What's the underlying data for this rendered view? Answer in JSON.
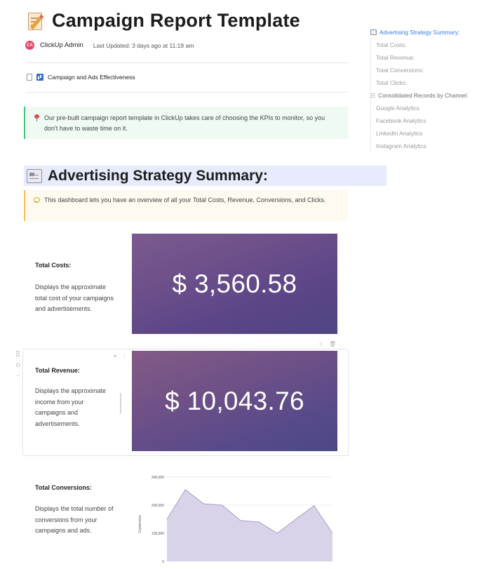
{
  "doc": {
    "title": "Campaign Report Template",
    "author": {
      "initials": "CA",
      "name": "ClickUp Admin"
    },
    "last_updated": "Last Updated: 3 days ago at 11:19 am",
    "subpage_link": "Campaign and Ads Effectiveness",
    "intro_callout": "Our pre-built campaign report template in ClickUp takes care of choosing the KPIs to monitor, so you don't have to waste time on it."
  },
  "section": {
    "title": "Advertising Strategy Summary:",
    "callout": "This dashboard lets you have an overview of all your Total Costs, Revenue, Conversions, and Clicks."
  },
  "metrics": {
    "costs": {
      "label": "Total Costs:",
      "description": "Displays the approximate total cost of your campaigns and advertisements.",
      "value": "$ 3,560.58"
    },
    "revenue": {
      "label": "Total Revenue:",
      "description": "Displays the approximate income from your campaigns and advertisements.",
      "value": "$ 10,043.76"
    },
    "conversions": {
      "label": "Total Conversions:",
      "description": "Displays the total number of conversions from your campaigns and ads."
    }
  },
  "chart_data": {
    "type": "area",
    "title": "",
    "xlabel": "",
    "ylabel": "Conversion",
    "y_ticks": [
      "0",
      "100,000",
      "200,000",
      "300,000"
    ],
    "ylim": [
      0,
      300000
    ],
    "values": [
      150000,
      255000,
      205000,
      200000,
      145000,
      140000,
      100000,
      150000,
      198000,
      100000
    ],
    "fill_color": "#d9d3ea",
    "line_color": "#a99cc9"
  },
  "toc": {
    "items": [
      {
        "label": "Advertising Strategy Summary:",
        "level": "h1"
      },
      {
        "label": "Total Costs:",
        "level": "h3"
      },
      {
        "label": "Total Revenue:",
        "level": "h3"
      },
      {
        "label": "Total Conversions:",
        "level": "h3"
      },
      {
        "label": "Total Clicks:",
        "level": "h3"
      },
      {
        "label": "Consolidated Records by Channel:",
        "level": "h2"
      },
      {
        "label": "Google Analytics",
        "level": "h3"
      },
      {
        "label": "Facebook Analytics",
        "level": "h3"
      },
      {
        "label": "LinkedIn Analytics",
        "level": "h3"
      },
      {
        "label": "Instagram Analytics",
        "level": "h3"
      }
    ]
  }
}
